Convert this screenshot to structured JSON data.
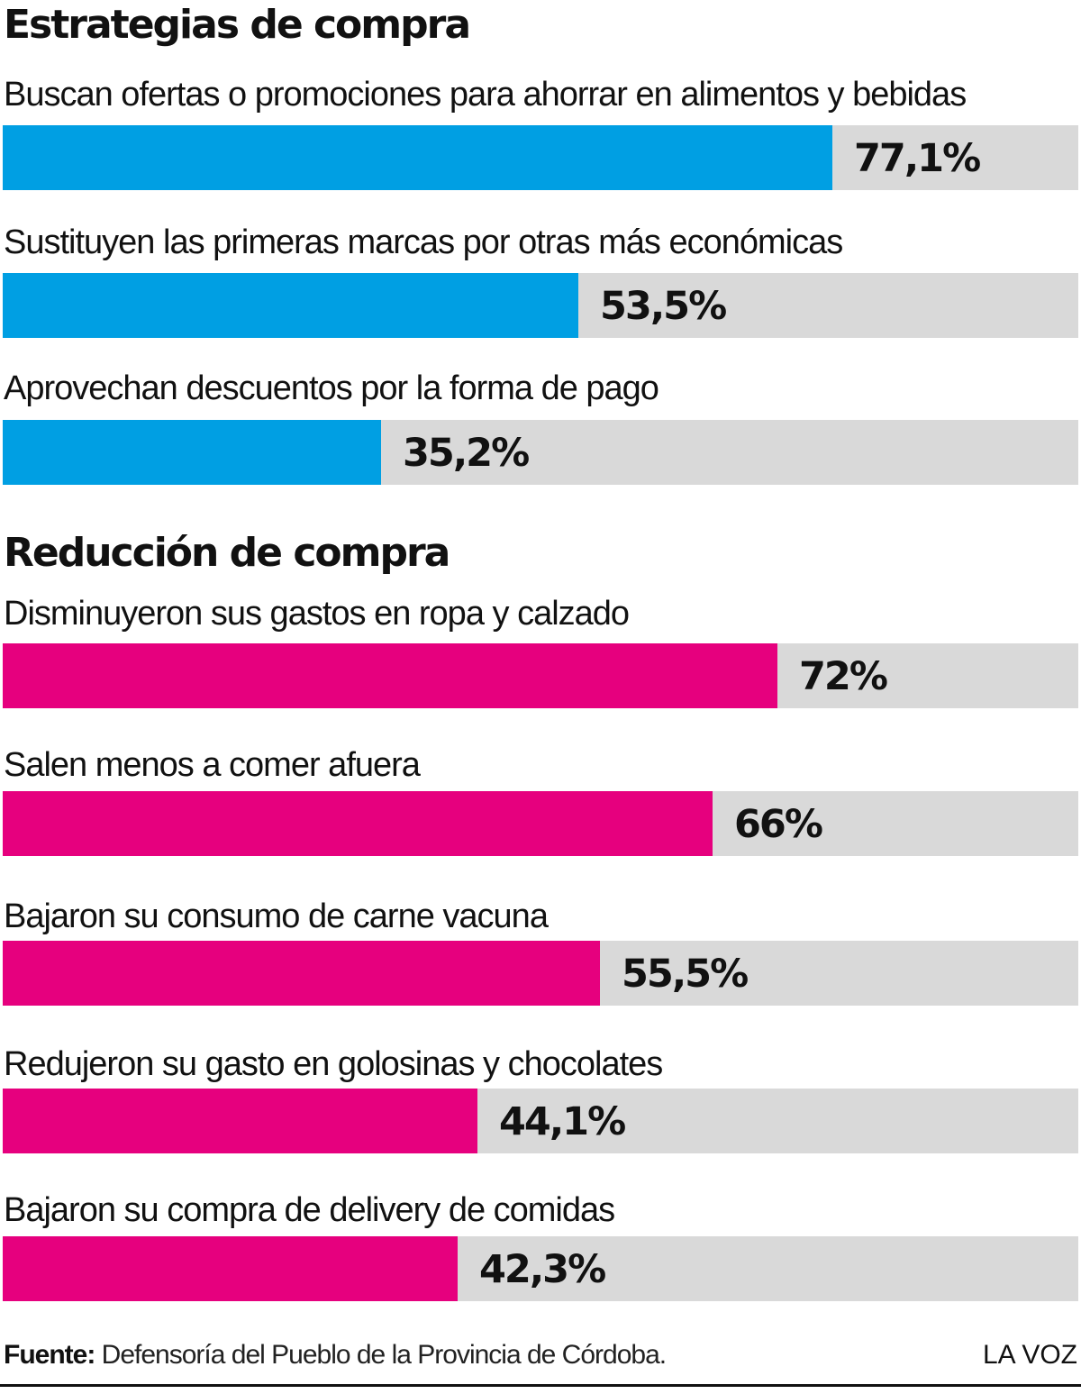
{
  "colors": {
    "section1": "#009fe3",
    "section2": "#e6007e",
    "track": "#d9d9d9"
  },
  "chart_data": [
    {
      "type": "bar",
      "title": "Estrategias de compra",
      "orientation": "horizontal",
      "unit": "%",
      "xlim": [
        0,
        100
      ],
      "categories": [
        "Buscan ofertas o promociones para ahorrar en alimentos y bebidas",
        "Sustituyen las primeras marcas por otras más económicas",
        "Aprovechan descuentos por la forma de pago"
      ],
      "values": [
        77.1,
        53.5,
        35.2
      ],
      "data_labels": [
        "77,1%",
        "53,5%",
        "35,2%"
      ]
    },
    {
      "type": "bar",
      "title": "Reducción de compra",
      "orientation": "horizontal",
      "unit": "%",
      "xlim": [
        0,
        100
      ],
      "categories": [
        "Disminuyeron sus gastos en ropa y calzado",
        "Salen menos a comer afuera",
        "Bajaron su consumo de carne vacuna",
        "Redujeron su gasto en golosinas y chocolates",
        "Bajaron su compra de delivery de comidas"
      ],
      "values": [
        72,
        66,
        55.5,
        44.1,
        42.3
      ],
      "data_labels": [
        "72%",
        "66%",
        "55,5%",
        "44,1%",
        "42,3%"
      ]
    }
  ],
  "footer": {
    "source_label": "Fuente:",
    "source_text": "Defensoría del Pueblo de la Provincia de Córdoba.",
    "brand": "LA VOZ"
  }
}
